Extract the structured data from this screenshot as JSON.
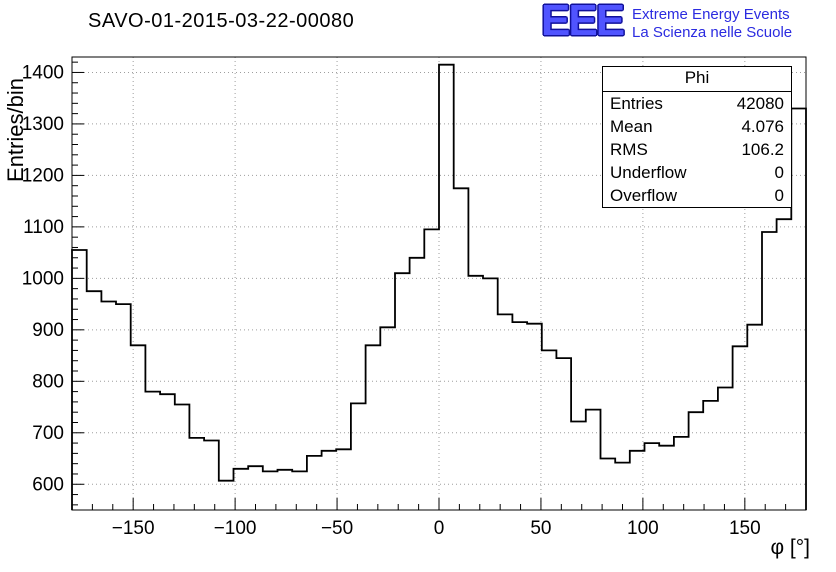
{
  "header": {
    "title": "SAVO-01-2015-03-22-00080",
    "logo": {
      "acronym": "EEE",
      "line1": "Extreme Energy Events",
      "line2": "La Scienza nelle Scuole"
    }
  },
  "stats": {
    "title": "Phi",
    "rows": [
      {
        "label": "Entries",
        "value": "42080"
      },
      {
        "label": "Mean",
        "value": "4.076"
      },
      {
        "label": "RMS",
        "value": "106.2"
      },
      {
        "label": "Underflow",
        "value": "0"
      },
      {
        "label": "Overflow",
        "value": "0"
      }
    ]
  },
  "chart_data": {
    "type": "bar",
    "style": "step-histogram",
    "title": "SAVO-01-2015-03-22-00080",
    "xlabel": "φ [°]",
    "ylabel": "Entries/bin",
    "xlim": [
      -180,
      180
    ],
    "ylim": [
      550,
      1430
    ],
    "bin_start": -180,
    "bin_width": 7.2,
    "values": [
      1055,
      975,
      955,
      950,
      870,
      780,
      775,
      755,
      690,
      685,
      607,
      630,
      635,
      625,
      628,
      625,
      655,
      665,
      668,
      757,
      870,
      905,
      1010,
      1040,
      1095,
      1415,
      1175,
      1005,
      1000,
      930,
      915,
      912,
      860,
      845,
      722,
      745,
      650,
      642,
      665,
      680,
      675,
      692,
      740,
      762,
      788,
      868,
      910,
      1090,
      1115,
      1330
    ],
    "xticks": [
      -150,
      -100,
      -50,
      0,
      50,
      100,
      150
    ],
    "yticks": [
      600,
      700,
      800,
      900,
      1000,
      1100,
      1200,
      1300,
      1400
    ],
    "x_minor_step": 10,
    "y_minor_step": 20,
    "grid": true,
    "legend_position": "none",
    "line_color": "#000000",
    "grid_color": "#9e9e9e"
  }
}
